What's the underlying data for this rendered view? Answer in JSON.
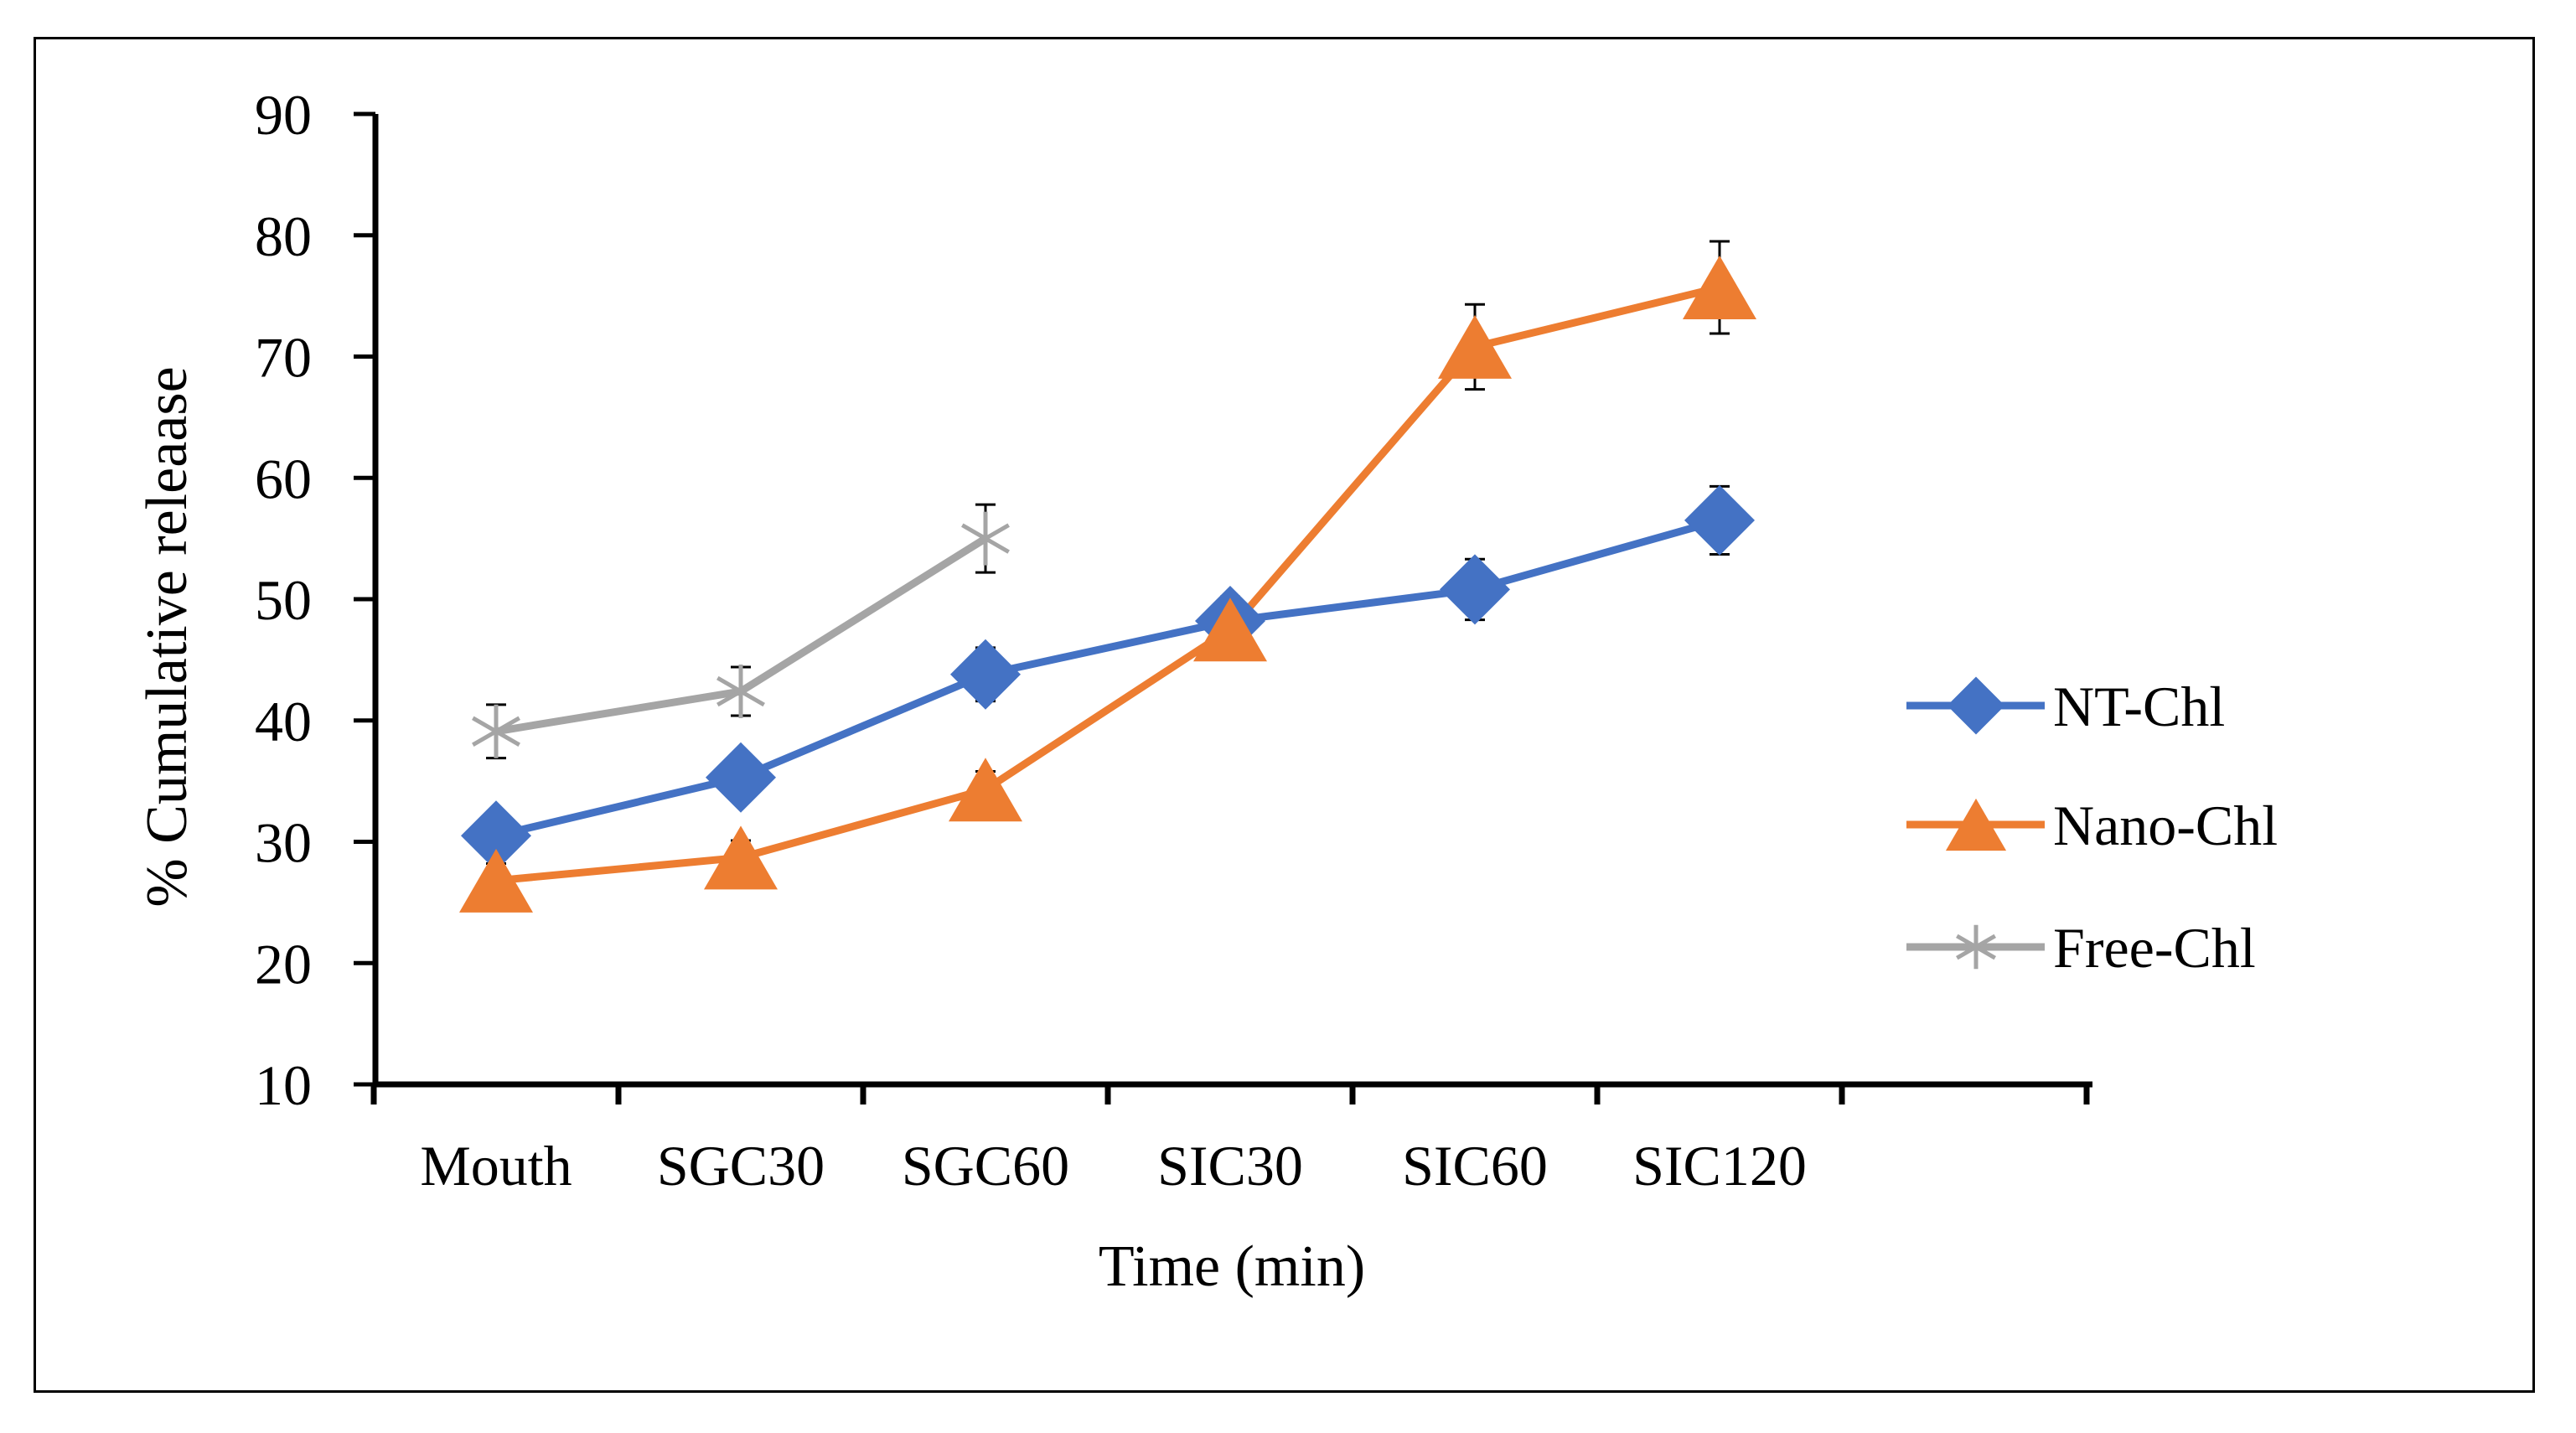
{
  "chart_data": {
    "type": "line",
    "title": "",
    "xlabel": "Time (min)",
    "ylabel": "% Cumulative releaase",
    "ylim": [
      10,
      90
    ],
    "yticks": [
      10,
      20,
      30,
      40,
      50,
      60,
      70,
      80,
      90
    ],
    "categories": [
      "Mouth",
      "SGC30",
      "SGC60",
      "SIC30",
      "SIC60",
      "SIC120"
    ],
    "legend_position": "right",
    "series": [
      {
        "name": "NT-Chl",
        "color": "#4472C4",
        "marker": "diamond",
        "values": [
          30.5,
          35.3,
          43.8,
          48.2,
          50.8,
          56.5
        ],
        "errors": [
          1.8,
          1.8,
          2.2,
          2.0,
          2.5,
          2.8
        ]
      },
      {
        "name": "Nano-Chl",
        "color": "#ED7D31",
        "marker": "triangle",
        "values": [
          26.8,
          28.7,
          34.3,
          47.5,
          70.8,
          75.7
        ],
        "errors": [
          1.4,
          1.4,
          1.5,
          1.8,
          3.5,
          3.8
        ]
      },
      {
        "name": "Free-Chl",
        "color": "#A5A5A5",
        "marker": "asterisk",
        "values": [
          39.1,
          42.4,
          55.0,
          null,
          null,
          null
        ],
        "errors": [
          2.2,
          2.0,
          2.8,
          null,
          null,
          null
        ]
      }
    ]
  }
}
